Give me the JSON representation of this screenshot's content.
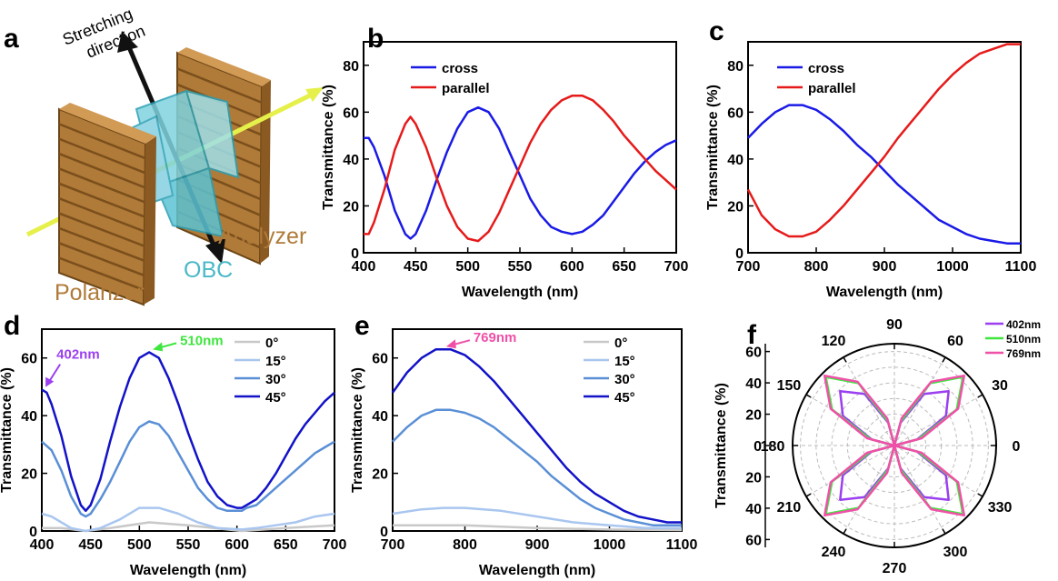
{
  "colors": {
    "cross": "#1a1ae6",
    "parallel": "#e61a1a",
    "deg0": "#c8c8c8",
    "deg15": "#a9c6ef",
    "deg30": "#5a8fd6",
    "deg45": "#1212c8",
    "nm402": "#9b3ff0",
    "nm510": "#3fe63f",
    "nm769": "#f050a8",
    "plate": "#b07a38",
    "obc": "#4ab8c8",
    "beam": "#e6f04a"
  },
  "panel_a": {
    "letter": "a",
    "stretching": "Stretching",
    "direction": "direction",
    "analyzer": "Analyzer",
    "obc": "OBC",
    "polarizer": "Polarizer"
  },
  "chart_data": [
    {
      "id": "b",
      "letter": "b",
      "type": "line",
      "xlabel": "Wavelength (nm)",
      "ylabel": "Transmittance (%)",
      "xlim": [
        400,
        700
      ],
      "ylim": [
        0,
        90
      ],
      "xticks": [
        400,
        450,
        500,
        550,
        600,
        650,
        700
      ],
      "yticks": [
        0,
        20,
        40,
        60,
        80
      ],
      "legend_position": "top-left",
      "series": [
        {
          "name": "cross",
          "color_key": "cross",
          "x": [
            400,
            405,
            410,
            420,
            430,
            440,
            445,
            450,
            460,
            470,
            480,
            490,
            500,
            510,
            520,
            530,
            540,
            550,
            560,
            570,
            580,
            590,
            600,
            610,
            620,
            630,
            640,
            650,
            660,
            670,
            680,
            690,
            700
          ],
          "y": [
            49,
            49,
            45,
            33,
            18,
            8,
            6,
            8,
            18,
            31,
            43,
            53,
            60,
            62,
            60,
            53,
            43,
            33,
            23,
            16,
            11,
            9,
            8,
            9,
            12,
            16,
            22,
            28,
            34,
            39,
            43,
            46,
            48
          ]
        },
        {
          "name": "parallel",
          "color_key": "parallel",
          "x": [
            400,
            405,
            410,
            420,
            430,
            440,
            445,
            450,
            460,
            470,
            480,
            490,
            500,
            510,
            520,
            530,
            540,
            550,
            560,
            570,
            580,
            590,
            600,
            610,
            620,
            630,
            640,
            650,
            660,
            670,
            680,
            690,
            700
          ],
          "y": [
            8,
            8,
            13,
            27,
            44,
            55,
            58,
            55,
            45,
            32,
            20,
            11,
            6,
            5,
            9,
            17,
            27,
            37,
            47,
            55,
            61,
            65,
            67,
            67,
            65,
            61,
            56,
            50,
            45,
            40,
            35,
            31,
            27
          ]
        }
      ]
    },
    {
      "id": "c",
      "letter": "c",
      "type": "line",
      "xlabel": "Wavelength (nm)",
      "ylabel": "Transmittance (%)",
      "xlim": [
        700,
        1100
      ],
      "ylim": [
        0,
        90
      ],
      "xticks": [
        700,
        800,
        900,
        1000,
        1100
      ],
      "yticks": [
        0,
        20,
        40,
        60,
        80
      ],
      "legend_position": "top-left",
      "series": [
        {
          "name": "cross",
          "color_key": "cross",
          "x": [
            700,
            720,
            740,
            760,
            770,
            780,
            800,
            820,
            840,
            860,
            880,
            900,
            920,
            940,
            960,
            980,
            1000,
            1020,
            1040,
            1060,
            1080,
            1100
          ],
          "y": [
            49,
            55,
            60,
            63,
            63,
            63,
            61,
            57,
            52,
            46,
            41,
            35,
            29,
            24,
            19,
            14,
            11,
            8,
            6,
            5,
            4,
            4
          ]
        },
        {
          "name": "parallel",
          "color_key": "parallel",
          "x": [
            700,
            720,
            740,
            760,
            770,
            780,
            800,
            820,
            840,
            860,
            880,
            900,
            920,
            940,
            960,
            980,
            1000,
            1020,
            1040,
            1060,
            1080,
            1100
          ],
          "y": [
            27,
            16,
            10,
            7,
            7,
            7,
            9,
            14,
            20,
            27,
            34,
            41,
            49,
            56,
            63,
            70,
            76,
            81,
            85,
            87,
            89,
            89
          ]
        }
      ]
    },
    {
      "id": "d",
      "letter": "d",
      "type": "line",
      "xlabel": "Wavelength (nm)",
      "ylabel": "Transmittance (%)",
      "xlim": [
        400,
        700
      ],
      "ylim": [
        0,
        70
      ],
      "xticks": [
        400,
        450,
        500,
        550,
        600,
        650,
        700
      ],
      "yticks": [
        0,
        20,
        40,
        60
      ],
      "legend_position": "top-right",
      "annotations": [
        {
          "text": "402nm",
          "x": 402,
          "y": 49,
          "color_key": "nm402"
        },
        {
          "text": "510nm",
          "x": 510,
          "y": 62,
          "color_key": "nm510"
        }
      ],
      "series": [
        {
          "name": "0°",
          "color_key": "deg0",
          "x": [
            400,
            420,
            445,
            470,
            510,
            550,
            605,
            650,
            700
          ],
          "y": [
            1,
            1,
            0,
            1,
            3,
            2,
            0,
            1,
            2
          ]
        },
        {
          "name": "15°",
          "color_key": "deg15",
          "x": [
            400,
            410,
            420,
            430,
            445,
            460,
            480,
            500,
            510,
            520,
            540,
            560,
            580,
            605,
            620,
            640,
            660,
            680,
            700
          ],
          "y": [
            6,
            5,
            3,
            1,
            0,
            1,
            4,
            8,
            8,
            8,
            6,
            3,
            1,
            0.5,
            1,
            2,
            3,
            5,
            6
          ]
        },
        {
          "name": "30°",
          "color_key": "deg30",
          "x": [
            400,
            410,
            420,
            430,
            440,
            445,
            450,
            460,
            470,
            480,
            490,
            500,
            510,
            520,
            530,
            540,
            550,
            560,
            570,
            580,
            590,
            600,
            605,
            610,
            620,
            630,
            640,
            650,
            660,
            670,
            680,
            690,
            700
          ],
          "y": [
            31,
            28,
            21,
            12,
            6,
            5,
            6,
            11,
            17,
            24,
            31,
            36,
            38,
            37,
            33,
            27,
            21,
            15,
            11,
            8,
            7,
            7,
            7,
            8,
            9,
            12,
            15,
            18,
            21,
            24,
            27,
            29,
            31
          ]
        },
        {
          "name": "45°",
          "color_key": "deg45",
          "x": [
            400,
            405,
            410,
            420,
            430,
            440,
            445,
            450,
            460,
            470,
            480,
            490,
            500,
            510,
            520,
            530,
            540,
            550,
            560,
            570,
            580,
            590,
            600,
            605,
            610,
            620,
            630,
            640,
            650,
            660,
            670,
            680,
            690,
            700
          ],
          "y": [
            49,
            48,
            44,
            33,
            19,
            9,
            7,
            9,
            18,
            31,
            43,
            53,
            60,
            62,
            60,
            53,
            44,
            34,
            25,
            17,
            12,
            9,
            8,
            8,
            9,
            11,
            15,
            20,
            26,
            32,
            37,
            41,
            45,
            48
          ]
        }
      ]
    },
    {
      "id": "e",
      "letter": "e",
      "type": "line",
      "xlabel": "Wavelength (nm)",
      "ylabel": "Transmittance (%)",
      "xlim": [
        700,
        1100
      ],
      "ylim": [
        0,
        70
      ],
      "xticks": [
        700,
        800,
        900,
        1000,
        1100
      ],
      "yticks": [
        0,
        20,
        40,
        60
      ],
      "legend_position": "top-right",
      "annotations": [
        {
          "text": "769nm",
          "x": 769,
          "y": 63,
          "color_key": "nm769"
        }
      ],
      "series": [
        {
          "name": "0°",
          "color_key": "deg0",
          "x": [
            700,
            750,
            800,
            900,
            1000,
            1100
          ],
          "y": [
            2,
            2,
            2,
            1,
            0.5,
            0.3
          ]
        },
        {
          "name": "15°",
          "color_key": "deg15",
          "x": [
            700,
            740,
            770,
            800,
            850,
            900,
            950,
            1000,
            1050,
            1100
          ],
          "y": [
            6,
            7.5,
            8,
            8,
            7,
            5,
            3,
            2,
            1,
            1
          ]
        },
        {
          "name": "30°",
          "color_key": "deg30",
          "x": [
            700,
            720,
            740,
            760,
            780,
            800,
            820,
            840,
            860,
            880,
            900,
            920,
            940,
            960,
            980,
            1000,
            1020,
            1040,
            1060,
            1080,
            1100
          ],
          "y": [
            31,
            36,
            40,
            42,
            42,
            41,
            39,
            36,
            32,
            28,
            24,
            19,
            15,
            11,
            8,
            6,
            4,
            3,
            2,
            2,
            2
          ]
        },
        {
          "name": "45°",
          "color_key": "deg45",
          "x": [
            700,
            720,
            740,
            760,
            770,
            780,
            800,
            820,
            840,
            860,
            880,
            900,
            920,
            940,
            960,
            980,
            1000,
            1020,
            1040,
            1060,
            1080,
            1100
          ],
          "y": [
            48,
            55,
            60,
            63,
            63,
            63,
            61,
            57,
            52,
            46,
            40,
            34,
            28,
            22,
            17,
            13,
            10,
            7,
            5,
            4,
            3,
            3
          ]
        }
      ]
    },
    {
      "id": "f",
      "letter": "f",
      "type": "polar",
      "ylabel": "Transmittance (%)",
      "rlim": [
        0,
        65
      ],
      "rticks": [
        20,
        40,
        60
      ],
      "angle_labels": [
        0,
        30,
        60,
        90,
        120,
        150,
        180,
        210,
        240,
        270,
        300,
        330
      ],
      "legend_position": "top-right",
      "series": [
        {
          "name": "402nm",
          "color_key": "nm402",
          "theta": [
            0,
            15,
            30,
            45,
            60,
            75,
            90,
            105,
            120,
            135,
            150,
            165,
            180,
            195,
            210,
            225,
            240,
            255,
            270,
            285,
            300,
            315,
            330,
            345,
            360
          ],
          "r": [
            0,
            15,
            38,
            49,
            38,
            15,
            0,
            15,
            38,
            49,
            38,
            15,
            0,
            15,
            38,
            49,
            38,
            15,
            0,
            15,
            38,
            49,
            38,
            15,
            0
          ]
        },
        {
          "name": "510nm",
          "color_key": "nm510",
          "theta": [
            0,
            15,
            30,
            45,
            60,
            75,
            90,
            105,
            120,
            135,
            150,
            165,
            180,
            195,
            210,
            225,
            240,
            255,
            270,
            285,
            300,
            315,
            330,
            345,
            360
          ],
          "r": [
            0,
            16,
            46,
            62,
            46,
            16,
            0,
            16,
            46,
            62,
            46,
            16,
            0,
            16,
            46,
            62,
            46,
            16,
            0,
            16,
            46,
            62,
            46,
            16,
            0
          ]
        },
        {
          "name": "769nm",
          "color_key": "nm769",
          "theta": [
            0,
            15,
            30,
            45,
            60,
            75,
            90,
            105,
            120,
            135,
            150,
            165,
            180,
            195,
            210,
            225,
            240,
            255,
            270,
            285,
            300,
            315,
            330,
            345,
            360
          ],
          "r": [
            0,
            18,
            47,
            63,
            47,
            18,
            0,
            18,
            47,
            63,
            47,
            18,
            0,
            18,
            47,
            63,
            47,
            18,
            0,
            18,
            47,
            63,
            47,
            18,
            0
          ]
        }
      ]
    }
  ]
}
